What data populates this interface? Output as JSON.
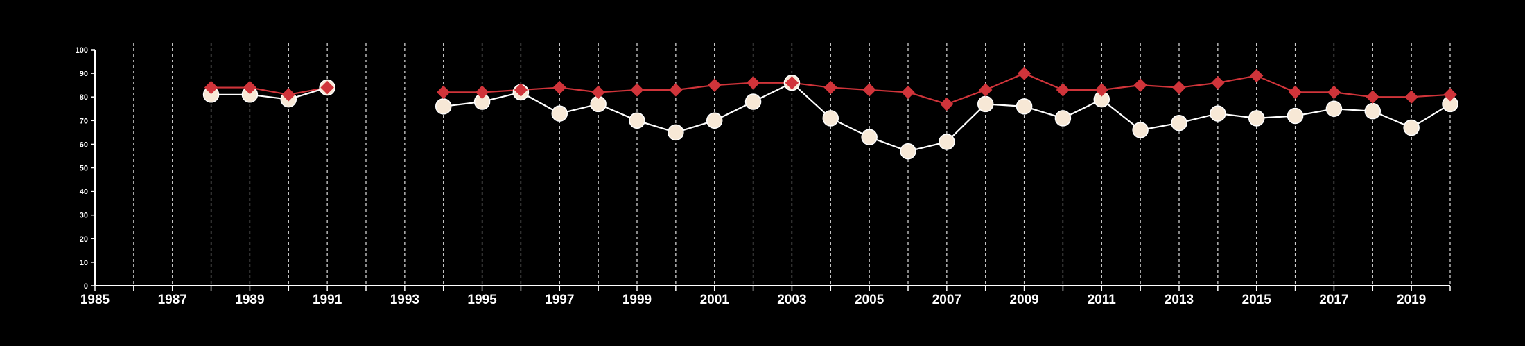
{
  "chart_data": {
    "type": "line",
    "title": "",
    "xlabel": "",
    "ylabel": "",
    "xlim": [
      1985,
      2020
    ],
    "ylim": [
      0,
      100
    ],
    "x_ticks": [
      1985,
      1986,
      1987,
      1988,
      1989,
      1990,
      1991,
      1992,
      1993,
      1994,
      1995,
      1996,
      1997,
      1998,
      1999,
      2000,
      2001,
      2002,
      2003,
      2004,
      2005,
      2006,
      2007,
      2008,
      2009,
      2010,
      2011,
      2012,
      2013,
      2014,
      2015,
      2016,
      2017,
      2018,
      2019,
      2020
    ],
    "x_tick_labels": [
      "1985",
      "1987",
      "1989",
      "1991",
      "1993",
      "1995",
      "1997",
      "1999",
      "2001",
      "2003",
      "2005",
      "2007",
      "2009",
      "2011",
      "2013",
      "2015",
      "2017",
      "2019"
    ],
    "y_ticks": [
      0,
      10,
      20,
      30,
      40,
      50,
      60,
      70,
      80,
      90,
      100
    ],
    "grid": "vertical dashed",
    "background": "#000000",
    "series": [
      {
        "marker": "diamond",
        "color": "#d0343a",
        "points": [
          {
            "x": 1988,
            "y": 84
          },
          {
            "x": 1989,
            "y": 84
          },
          {
            "x": 1990,
            "y": 81
          },
          {
            "x": 1991,
            "y": 84
          },
          {
            "x": 1994,
            "y": 82
          },
          {
            "x": 1995,
            "y": 82
          },
          {
            "x": 1996,
            "y": 83
          },
          {
            "x": 1997,
            "y": 84
          },
          {
            "x": 1998,
            "y": 82
          },
          {
            "x": 1999,
            "y": 83
          },
          {
            "x": 2000,
            "y": 83
          },
          {
            "x": 2001,
            "y": 85
          },
          {
            "x": 2002,
            "y": 86
          },
          {
            "x": 2003,
            "y": 86
          },
          {
            "x": 2004,
            "y": 84
          },
          {
            "x": 2005,
            "y": 83
          },
          {
            "x": 2006,
            "y": 82
          },
          {
            "x": 2007,
            "y": 77
          },
          {
            "x": 2008,
            "y": 83
          },
          {
            "x": 2009,
            "y": 90
          },
          {
            "x": 2010,
            "y": 83
          },
          {
            "x": 2011,
            "y": 83
          },
          {
            "x": 2012,
            "y": 85
          },
          {
            "x": 2013,
            "y": 84
          },
          {
            "x": 2014,
            "y": 86
          },
          {
            "x": 2015,
            "y": 89
          },
          {
            "x": 2016,
            "y": 82
          },
          {
            "x": 2017,
            "y": 82
          },
          {
            "x": 2018,
            "y": 80
          },
          {
            "x": 2019,
            "y": 80
          },
          {
            "x": 2020,
            "y": 81
          }
        ]
      },
      {
        "marker": "circle",
        "color": "#f7e8d6",
        "line_color": "#ffffff",
        "points": [
          {
            "x": 1988,
            "y": 81
          },
          {
            "x": 1989,
            "y": 81
          },
          {
            "x": 1990,
            "y": 79
          },
          {
            "x": 1991,
            "y": 84
          },
          {
            "x": 1994,
            "y": 76
          },
          {
            "x": 1995,
            "y": 78
          },
          {
            "x": 1996,
            "y": 82
          },
          {
            "x": 1997,
            "y": 73
          },
          {
            "x": 1998,
            "y": 77
          },
          {
            "x": 1999,
            "y": 70
          },
          {
            "x": 2000,
            "y": 65
          },
          {
            "x": 2001,
            "y": 70
          },
          {
            "x": 2002,
            "y": 78
          },
          {
            "x": 2003,
            "y": 86
          },
          {
            "x": 2004,
            "y": 71
          },
          {
            "x": 2005,
            "y": 63
          },
          {
            "x": 2006,
            "y": 57
          },
          {
            "x": 2007,
            "y": 61
          },
          {
            "x": 2008,
            "y": 77
          },
          {
            "x": 2009,
            "y": 76
          },
          {
            "x": 2010,
            "y": 71
          },
          {
            "x": 2011,
            "y": 79
          },
          {
            "x": 2012,
            "y": 66
          },
          {
            "x": 2013,
            "y": 69
          },
          {
            "x": 2014,
            "y": 73
          },
          {
            "x": 2015,
            "y": 71
          },
          {
            "x": 2016,
            "y": 72
          },
          {
            "x": 2017,
            "y": 75
          },
          {
            "x": 2018,
            "y": 74
          },
          {
            "x": 2019,
            "y": 67
          },
          {
            "x": 2020,
            "y": 77
          }
        ]
      }
    ]
  }
}
